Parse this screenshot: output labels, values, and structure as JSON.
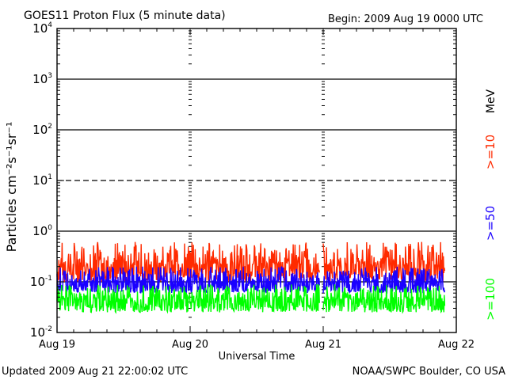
{
  "header": {
    "title": "GOES11 Proton Flux (5 minute data)",
    "begin": "Begin:  2009 Aug 19  0000 UTC"
  },
  "footer": {
    "updated": "Updated 2009 Aug 21 22:00:02 UTC",
    "credit": "NOAA/SWPC Boulder, CO USA"
  },
  "chart_data": {
    "type": "line",
    "title": "GOES11 Proton Flux (5 minute data)",
    "xlabel": "Universal Time",
    "ylabel": "Particles cm⁻²s⁻¹sr⁻¹",
    "y_scale": "log",
    "ylim": [
      0.01,
      10000
    ],
    "xlim": [
      0,
      72
    ],
    "x_unit": "hours since 2009 Aug 19 0000 UTC",
    "x_ticks": [
      {
        "x": 0,
        "label": "Aug 19"
      },
      {
        "x": 24,
        "label": "Aug 20"
      },
      {
        "x": 48,
        "label": "Aug 21"
      },
      {
        "x": 72,
        "label": "Aug 22"
      }
    ],
    "y_ticks": [
      {
        "y": 10000,
        "base": "10",
        "exp": "4"
      },
      {
        "y": 1000,
        "base": "10",
        "exp": "3"
      },
      {
        "y": 100,
        "base": "10",
        "exp": "2"
      },
      {
        "y": 10,
        "base": "10",
        "exp": "1"
      },
      {
        "y": 1,
        "base": "10",
        "exp": "0"
      },
      {
        "y": 0.1,
        "base": "10",
        "exp": "-1"
      },
      {
        "y": 0.01,
        "base": "10",
        "exp": "-2"
      }
    ],
    "threshold_lines": [
      {
        "y": 1000,
        "style": "solid"
      },
      {
        "y": 100,
        "style": "solid"
      },
      {
        "y": 10,
        "style": "dashed"
      },
      {
        "y": 1,
        "style": "solid"
      },
      {
        "y": 0.1,
        "style": "solid"
      }
    ],
    "right_axis_label": "MeV",
    "series": [
      {
        "name": ">=10",
        "color": "#ff2a00",
        "median": 0.22,
        "min": 0.1,
        "max": 0.62
      },
      {
        "name": ">=50",
        "color": "#1a00ff",
        "median": 0.1,
        "min": 0.06,
        "max": 0.2
      },
      {
        "name": ">=100",
        "color": "#00ff00",
        "median": 0.045,
        "min": 0.025,
        "max": 0.09
      }
    ],
    "data_gap_hours": [
      47.4,
      48.0
    ],
    "data_end_hour": 70.0,
    "grid": false
  }
}
